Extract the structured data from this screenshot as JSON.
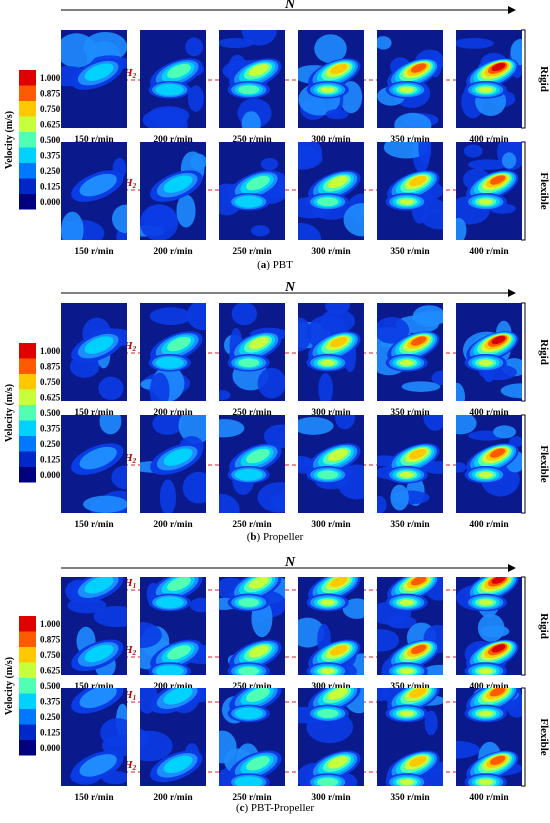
{
  "figure": {
    "axis_symbol": "N",
    "colorbar_title": "Velocity (m/s)",
    "colorbar_levels": [
      "1.000",
      "0.875",
      "0.750",
      "0.625",
      "0.500",
      "0.375",
      "0.250",
      "0.125",
      "0.000"
    ],
    "colorbar_colors": [
      "#e00000",
      "#ff5a00",
      "#ffc800",
      "#c8ff3c",
      "#50ffb4",
      "#00d2ff",
      "#0078ff",
      "#0028c8",
      "#000080"
    ],
    "speeds": [
      "150 r/min",
      "200 r/min",
      "250 r/min",
      "300 r/min",
      "350 r/min",
      "400 r/min"
    ],
    "row_labels": [
      "Rigid",
      "Flexible"
    ],
    "height_markers": {
      "single": "H",
      "single_sub": "2",
      "dual_top_sub": "1",
      "dual_bottom_sub": "2"
    },
    "panels": [
      {
        "letter": "(a)",
        "name": "PBT",
        "markers": "single"
      },
      {
        "letter": "(b)",
        "name": "Propeller",
        "markers": "single"
      },
      {
        "letter": "(c)",
        "name": "PBT-Propeller",
        "markers": "dual"
      }
    ]
  }
}
